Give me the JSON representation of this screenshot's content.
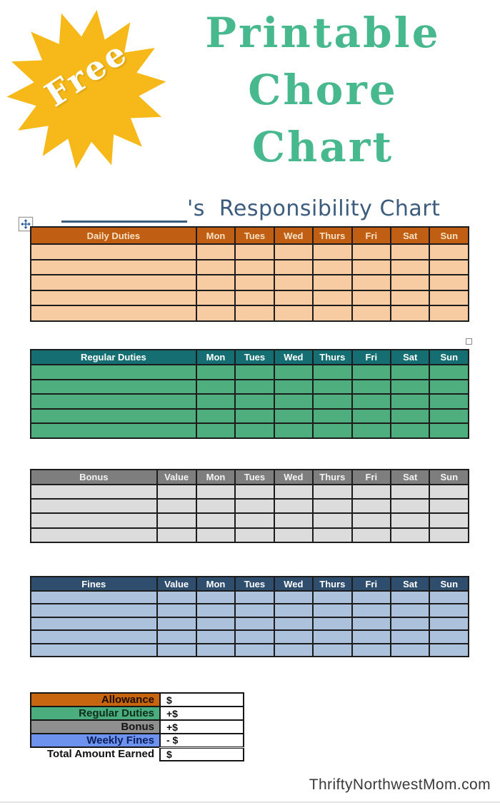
{
  "badge": {
    "label": "Free",
    "bg_color": "#F6B919",
    "text_color": "#FFFFFF"
  },
  "title": {
    "lines": [
      "Printable",
      "Chore",
      "Chart"
    ],
    "color": "#48B88E"
  },
  "heading": {
    "suffix": "'s",
    "text": "Responsibility Chart",
    "color": "#3C5C7E"
  },
  "days": [
    "Mon",
    "Tues",
    "Wed",
    "Thurs",
    "Fri",
    "Sat",
    "Sun"
  ],
  "tables": [
    {
      "id": "daily",
      "title": "Daily Duties",
      "rows": 5,
      "header_bg": "#C05F14",
      "body_bg": "#F8CCA3",
      "header_text": "#F7E1C3"
    },
    {
      "id": "regular",
      "title": "Regular Duties",
      "rows": 5,
      "header_bg": "#156F72",
      "body_bg": "#4FAE7E",
      "header_text": "#FFFFFF"
    },
    {
      "id": "bonus",
      "title": "Bonus",
      "value_label": "Value",
      "rows": 4,
      "header_bg": "#7E7E7E",
      "body_bg": "#DCDCDC",
      "header_text": "#F2F2F2"
    },
    {
      "id": "fines",
      "title": "Fines",
      "value_label": "Value",
      "rows": 5,
      "header_bg": "#2F4E6E",
      "body_bg": "#ACC1DC",
      "header_text": "#FFFFFF"
    }
  ],
  "summary": {
    "rows": [
      {
        "label": "Allowance",
        "value": "$",
        "bg": "#C8660F",
        "text": "#1c0d00"
      },
      {
        "label": "Regular Duties",
        "value": "+$",
        "bg": "#4BAD7E",
        "text": "#0c2d1b"
      },
      {
        "label": "Bonus",
        "value": "+$",
        "bg": "#8F8F8F",
        "text": "#141414"
      },
      {
        "label": "Weekly Fines",
        "value": "- $",
        "bg": "#6C92EE",
        "text": "#0c1e5a"
      }
    ],
    "total": {
      "label": "Total Amount Earned",
      "value": "$"
    }
  },
  "icons": {
    "move_handle": "move-cross-arrows-icon",
    "resize_handle": "resize-square-icon",
    "badge_shape": "starburst-icon"
  },
  "watermark": "ThriftyNorthwestMom.com"
}
